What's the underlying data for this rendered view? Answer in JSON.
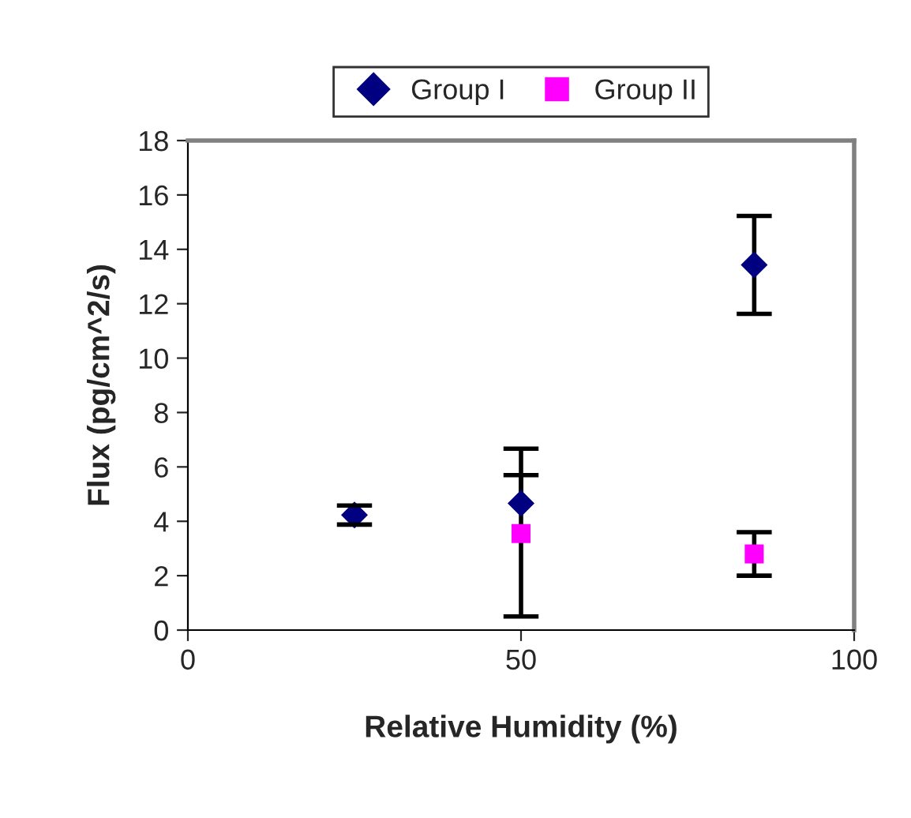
{
  "chart_data": {
    "type": "scatter",
    "xlabel": "Relative Humidity (%)",
    "ylabel": "Flux (pg/cm^2/s)",
    "xlim": [
      0,
      100
    ],
    "xticks": [
      0,
      50,
      100
    ],
    "ylim": [
      0,
      18
    ],
    "yticks": [
      0,
      2,
      4,
      6,
      8,
      10,
      12,
      14,
      16,
      18
    ],
    "grid": false,
    "legend": "top",
    "series": [
      {
        "name": "Group I",
        "color": "#000080",
        "marker": "diamond",
        "x": [
          25,
          50,
          85
        ],
        "values": [
          4.23,
          4.66,
          13.43
        ],
        "errors": [
          0.35,
          [
            4.66,
            6.67
          ],
          1.8
        ]
      },
      {
        "name": "Group II",
        "color": "#ff00ff",
        "marker": "square",
        "x": [
          50,
          85
        ],
        "values": [
          3.55,
          2.8
        ],
        "errors": [
          [
            0.5,
            5.7
          ],
          0.8
        ]
      }
    ]
  }
}
